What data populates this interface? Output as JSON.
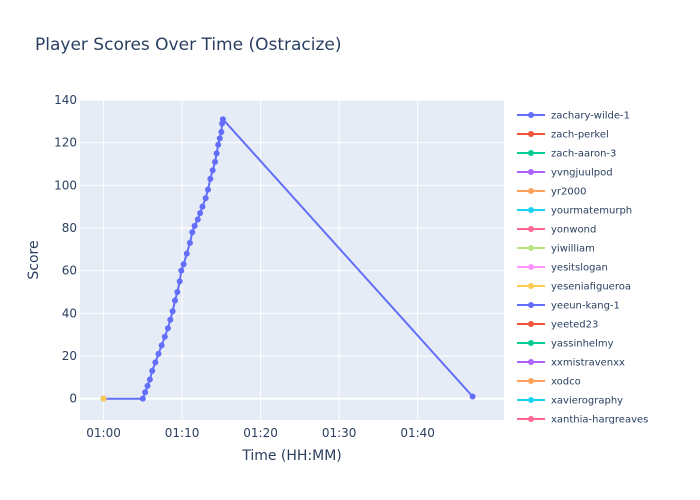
{
  "chart_data": {
    "type": "line",
    "title": "Player Scores Over Time (Ostracize)",
    "xlabel": "Time (HH:MM)",
    "ylabel": "Score",
    "x_unit": "minutes since 00:00",
    "xlim": [
      57,
      111
    ],
    "ylim": [
      -10,
      140
    ],
    "x_ticks": [
      {
        "value": 60,
        "label": "01:00"
      },
      {
        "value": 70,
        "label": "01:10"
      },
      {
        "value": 80,
        "label": "01:20"
      },
      {
        "value": 90,
        "label": "01:30"
      },
      {
        "value": 100,
        "label": "01:40"
      }
    ],
    "y_ticks": [
      0,
      20,
      40,
      60,
      80,
      100,
      120,
      140
    ],
    "grid": true,
    "legend_position": "right",
    "series": [
      {
        "name": "zachary-wilde-1",
        "color": "#636efa",
        "marker": "circle",
        "x": [
          60.0,
          65.0,
          65.3,
          65.6,
          65.9,
          66.2,
          66.6,
          67.0,
          67.4,
          67.8,
          68.2,
          68.5,
          68.8,
          69.1,
          69.4,
          69.7,
          69.9,
          70.2,
          70.6,
          71.0,
          71.3,
          71.6,
          72.0,
          72.3,
          72.6,
          73.0,
          73.3,
          73.6,
          73.9,
          74.2,
          74.4,
          74.6,
          74.8,
          75.0,
          75.1,
          75.2,
          107.0
        ],
        "y": [
          0,
          0,
          3,
          6,
          9,
          13,
          17,
          21,
          25,
          29,
          33,
          37,
          41,
          46,
          50,
          55,
          60,
          63,
          68,
          73,
          78,
          81,
          84,
          87,
          90,
          94,
          98,
          103,
          107,
          111,
          115,
          119,
          122,
          125,
          129,
          131,
          1
        ]
      },
      {
        "name": "zach-perkel",
        "color": "#ef553b",
        "marker": "circle",
        "x": [],
        "y": []
      },
      {
        "name": "zach-aaron-3",
        "color": "#00cc96",
        "marker": "circle",
        "x": [],
        "y": []
      },
      {
        "name": "yvngjuulpod",
        "color": "#ab63fa",
        "marker": "circle",
        "x": [],
        "y": []
      },
      {
        "name": "yr2000",
        "color": "#ffa15a",
        "marker": "circle",
        "x": [],
        "y": []
      },
      {
        "name": "yourmatemurph",
        "color": "#19d3f3",
        "marker": "circle",
        "x": [],
        "y": []
      },
      {
        "name": "yonwond",
        "color": "#ff6692",
        "marker": "circle",
        "x": [],
        "y": []
      },
      {
        "name": "yiwilliam",
        "color": "#b6e880",
        "marker": "circle",
        "x": [],
        "y": []
      },
      {
        "name": "yesitslogan",
        "color": "#ff97ff",
        "marker": "circle",
        "x": [],
        "y": []
      },
      {
        "name": "yeseniafigueroa",
        "color": "#fecb52",
        "marker": "circle",
        "x": [
          60.0
        ],
        "y": [
          0
        ]
      },
      {
        "name": "yeeun-kang-1",
        "color": "#636efa",
        "marker": "circle",
        "x": [],
        "y": []
      },
      {
        "name": "yeeted23",
        "color": "#ef553b",
        "marker": "circle",
        "x": [],
        "y": []
      },
      {
        "name": "yassinhelmy",
        "color": "#00cc96",
        "marker": "circle",
        "x": [],
        "y": []
      },
      {
        "name": "xxmistravenxx",
        "color": "#ab63fa",
        "marker": "circle",
        "x": [],
        "y": []
      },
      {
        "name": "xodco",
        "color": "#ffa15a",
        "marker": "circle",
        "x": [],
        "y": []
      },
      {
        "name": "xavierography",
        "color": "#19d3f3",
        "marker": "circle",
        "x": [],
        "y": []
      },
      {
        "name": "xanthia-hargreaves",
        "color": "#ff6692",
        "marker": "circle",
        "x": [],
        "y": []
      }
    ]
  }
}
